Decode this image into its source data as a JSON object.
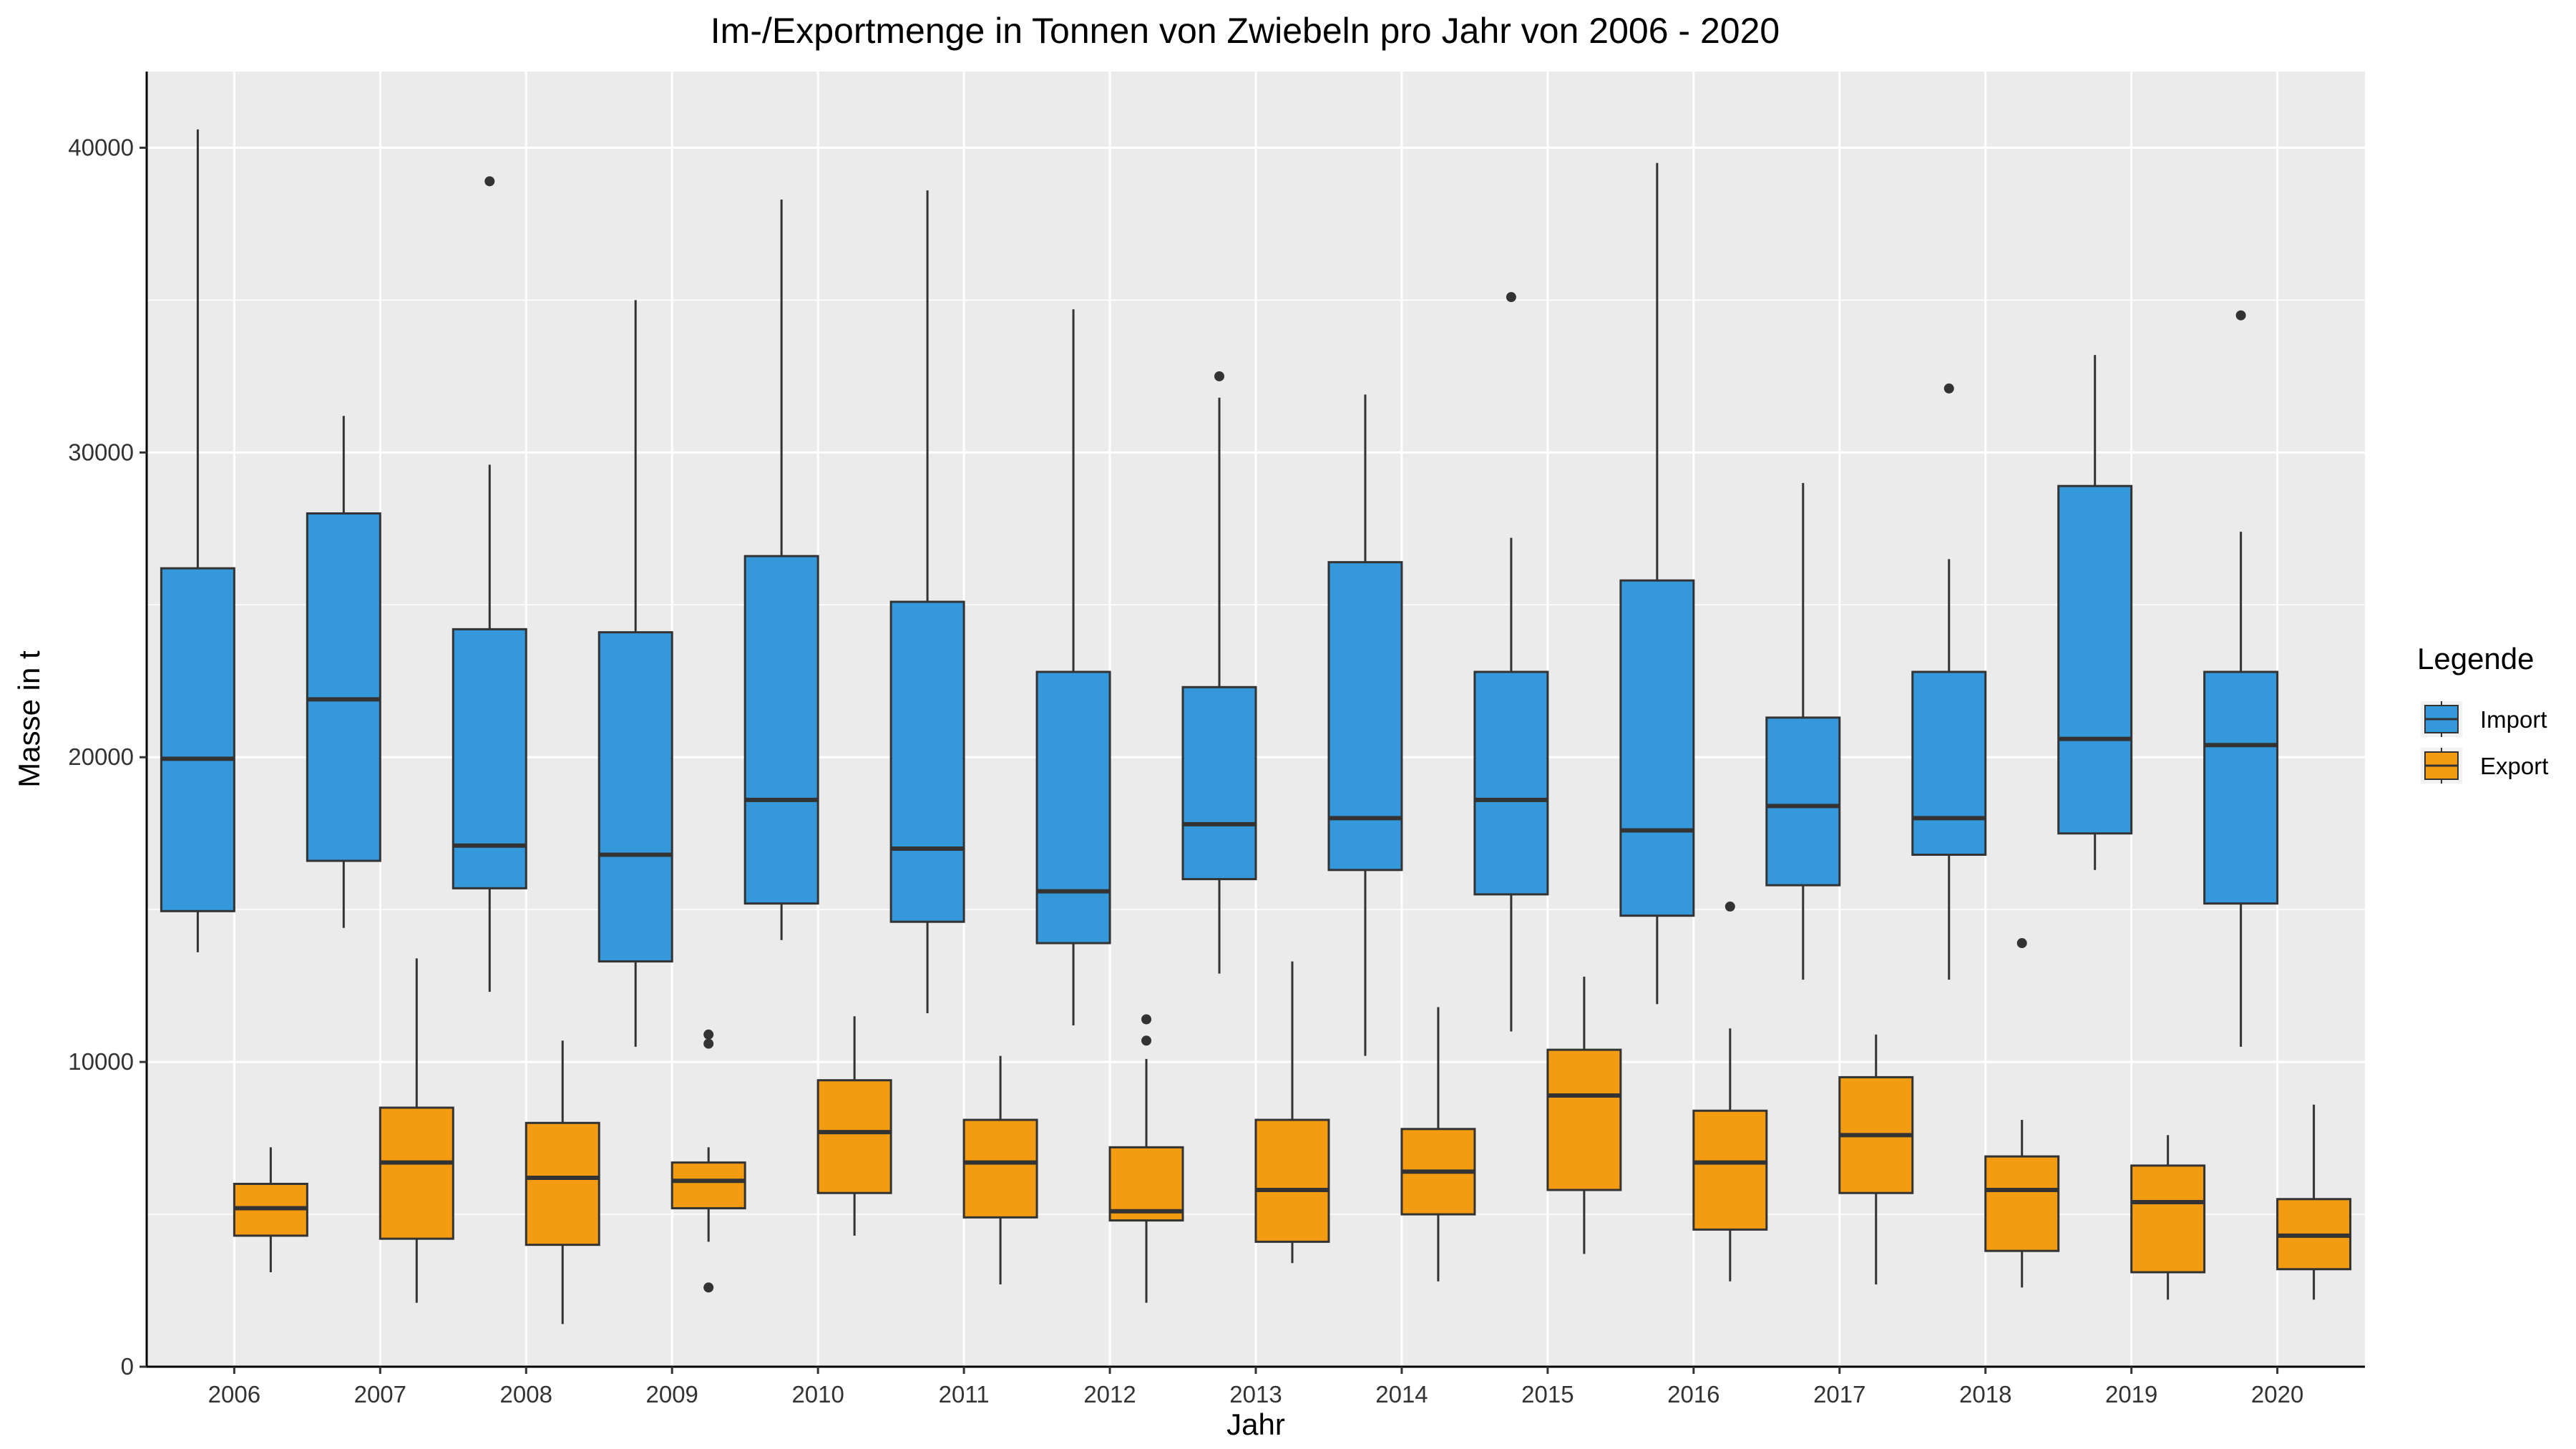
{
  "chart_data": {
    "type": "boxplot",
    "title": "Im-/Exportmenge in Tonnen von Zwiebeln pro Jahr von 2006 - 2020",
    "xlabel": "Jahr",
    "ylabel": "Masse in t",
    "ylim": [
      0,
      42500
    ],
    "yticks": [
      0,
      10000,
      20000,
      30000,
      40000
    ],
    "grid": true,
    "legend": {
      "title": "Legende",
      "placement": "right",
      "entries": [
        {
          "name": "Import",
          "color": "#3498DB"
        },
        {
          "name": "Export",
          "color": "#F39C12"
        }
      ]
    },
    "categories": [
      "2006",
      "2007",
      "2008",
      "2009",
      "2010",
      "2011",
      "2012",
      "2013",
      "2014",
      "2015",
      "2016",
      "2017",
      "2018",
      "2019",
      "2020"
    ],
    "series": [
      {
        "name": "Import",
        "color": "#3498DB",
        "boxes": [
          {
            "whisker_low": 13600,
            "q1": 14950,
            "median": 19950,
            "q3": 26200,
            "whisker_high": 40600,
            "outliers": []
          },
          {
            "whisker_low": 14400,
            "q1": 16600,
            "median": 21900,
            "q3": 28000,
            "whisker_high": 31200,
            "outliers": []
          },
          {
            "whisker_low": 12300,
            "q1": 15700,
            "median": 17100,
            "q3": 24200,
            "whisker_high": 29600,
            "outliers": [
              38900
            ]
          },
          {
            "whisker_low": 10500,
            "q1": 13300,
            "median": 16800,
            "q3": 24100,
            "whisker_high": 35000,
            "outliers": []
          },
          {
            "whisker_low": 14000,
            "q1": 15200,
            "median": 18600,
            "q3": 26600,
            "whisker_high": 38300,
            "outliers": []
          },
          {
            "whisker_low": 11600,
            "q1": 14600,
            "median": 17000,
            "q3": 25100,
            "whisker_high": 38600,
            "outliers": []
          },
          {
            "whisker_low": 11200,
            "q1": 13900,
            "median": 15600,
            "q3": 22800,
            "whisker_high": 34700,
            "outliers": []
          },
          {
            "whisker_low": 12900,
            "q1": 16000,
            "median": 17800,
            "q3": 22300,
            "whisker_high": 31800,
            "outliers": [
              32500
            ]
          },
          {
            "whisker_low": 10200,
            "q1": 16300,
            "median": 18000,
            "q3": 26400,
            "whisker_high": 31900,
            "outliers": []
          },
          {
            "whisker_low": 11000,
            "q1": 15500,
            "median": 18600,
            "q3": 22800,
            "whisker_high": 27200,
            "outliers": [
              35100
            ]
          },
          {
            "whisker_low": 11900,
            "q1": 14800,
            "median": 17600,
            "q3": 25800,
            "whisker_high": 39500,
            "outliers": []
          },
          {
            "whisker_low": 12700,
            "q1": 15800,
            "median": 18400,
            "q3": 21300,
            "whisker_high": 29000,
            "outliers": []
          },
          {
            "whisker_low": 12700,
            "q1": 16800,
            "median": 18000,
            "q3": 22800,
            "whisker_high": 26500,
            "outliers": [
              32100
            ]
          },
          {
            "whisker_low": 16300,
            "q1": 17500,
            "median": 20600,
            "q3": 28900,
            "whisker_high": 33200,
            "outliers": []
          },
          {
            "whisker_low": 10500,
            "q1": 15200,
            "median": 20400,
            "q3": 22800,
            "whisker_high": 27400,
            "outliers": [
              34500
            ]
          }
        ]
      },
      {
        "name": "Export",
        "color": "#F39C12",
        "boxes": [
          {
            "whisker_low": 3100,
            "q1": 4300,
            "median": 5200,
            "q3": 6000,
            "whisker_high": 7200,
            "outliers": []
          },
          {
            "whisker_low": 2100,
            "q1": 4200,
            "median": 6700,
            "q3": 8500,
            "whisker_high": 13400,
            "outliers": []
          },
          {
            "whisker_low": 1400,
            "q1": 4000,
            "median": 6200,
            "q3": 8000,
            "whisker_high": 10700,
            "outliers": []
          },
          {
            "whisker_low": 4100,
            "q1": 5200,
            "median": 6100,
            "q3": 6700,
            "whisker_high": 7200,
            "outliers": [
              10900,
              10600,
              2600
            ]
          },
          {
            "whisker_low": 4300,
            "q1": 5700,
            "median": 7700,
            "q3": 9400,
            "whisker_high": 11500,
            "outliers": []
          },
          {
            "whisker_low": 2700,
            "q1": 4900,
            "median": 6700,
            "q3": 8100,
            "whisker_high": 10200,
            "outliers": []
          },
          {
            "whisker_low": 2100,
            "q1": 4800,
            "median": 5100,
            "q3": 7200,
            "whisker_high": 10100,
            "outliers": [
              11400,
              10700
            ]
          },
          {
            "whisker_low": 3400,
            "q1": 4100,
            "median": 5800,
            "q3": 8100,
            "whisker_high": 13300,
            "outliers": []
          },
          {
            "whisker_low": 2800,
            "q1": 5000,
            "median": 6400,
            "q3": 7800,
            "whisker_high": 11800,
            "outliers": []
          },
          {
            "whisker_low": 3700,
            "q1": 5800,
            "median": 8900,
            "q3": 10400,
            "whisker_high": 12800,
            "outliers": []
          },
          {
            "whisker_low": 2800,
            "q1": 4500,
            "median": 6700,
            "q3": 8400,
            "whisker_high": 11100,
            "outliers": [
              15100
            ]
          },
          {
            "whisker_low": 2700,
            "q1": 5700,
            "median": 7600,
            "q3": 9500,
            "whisker_high": 10900,
            "outliers": []
          },
          {
            "whisker_low": 2600,
            "q1": 3800,
            "median": 5800,
            "q3": 6900,
            "whisker_high": 8100,
            "outliers": [
              13900
            ]
          },
          {
            "whisker_low": 2200,
            "q1": 3100,
            "median": 5400,
            "q3": 6600,
            "whisker_high": 7600,
            "outliers": []
          },
          {
            "whisker_low": 2200,
            "q1": 3200,
            "median": 4300,
            "q3": 5500,
            "whisker_high": 8600,
            "outliers": []
          }
        ]
      }
    ]
  }
}
